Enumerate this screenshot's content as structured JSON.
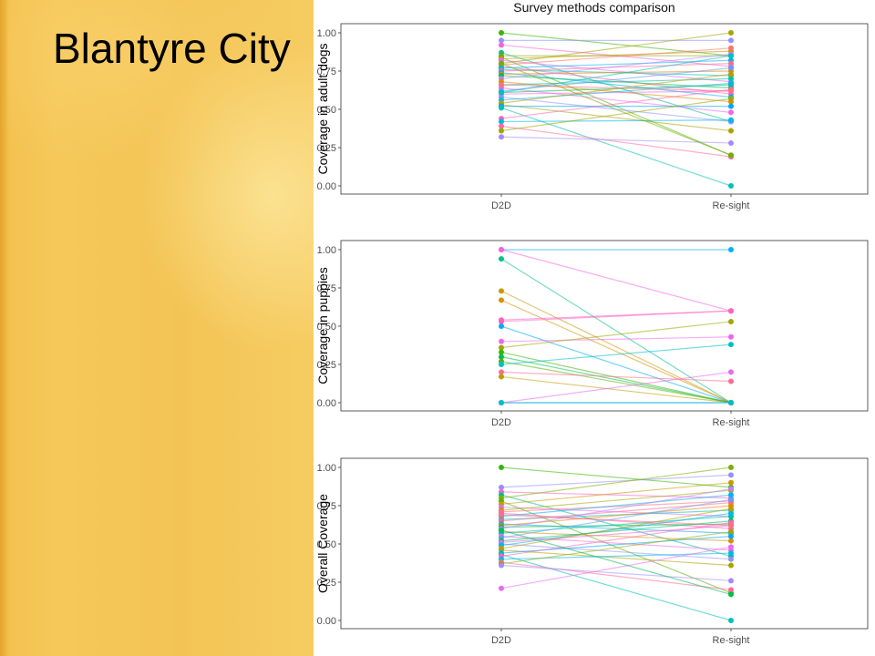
{
  "slide": {
    "title": "Blantyre City"
  },
  "chart_data": [
    {
      "type": "line",
      "title": "Survey methods comparison",
      "ylabel": "Coverage in adult dogs",
      "categories": [
        "D2D",
        "Re-sight"
      ],
      "ylim": [
        0,
        1
      ],
      "yticks": [
        "0.00",
        "0.25",
        "0.50",
        "0.75",
        "1.00"
      ],
      "grid": false,
      "legend": "none",
      "series": [
        {
          "values": [
            1.0,
            0.85
          ],
          "color": "#39b600"
        },
        {
          "values": [
            0.95,
            0.95
          ],
          "color": "#9590ff"
        },
        {
          "values": [
            0.92,
            0.78
          ],
          "color": "#fd61d1"
        },
        {
          "values": [
            0.87,
            0.42
          ],
          "color": "#00c08b"
        },
        {
          "values": [
            0.85,
            0.85
          ],
          "color": "#7cae00"
        },
        {
          "values": [
            0.84,
            0.2
          ],
          "color": "#53b400"
        },
        {
          "values": [
            0.83,
            0.88
          ],
          "color": "#c99800"
        },
        {
          "values": [
            0.82,
            0.68
          ],
          "color": "#e76bf3"
        },
        {
          "values": [
            0.8,
            1.0
          ],
          "color": "#a3a500"
        },
        {
          "values": [
            0.79,
            0.9
          ],
          "color": "#f8766d"
        },
        {
          "values": [
            0.78,
            0.6
          ],
          "color": "#ff62bc"
        },
        {
          "values": [
            0.77,
            0.82
          ],
          "color": "#00b0f6"
        },
        {
          "values": [
            0.76,
            0.72
          ],
          "color": "#00bfc4"
        },
        {
          "values": [
            0.75,
            0.8
          ],
          "color": "#ff6c91"
        },
        {
          "values": [
            0.74,
            0.58
          ],
          "color": "#00a9ff"
        },
        {
          "values": [
            0.73,
            0.75
          ],
          "color": "#e58700"
        },
        {
          "values": [
            0.72,
            0.64
          ],
          "color": "#00bc56"
        },
        {
          "values": [
            0.7,
            0.86
          ],
          "color": "#b983ff"
        },
        {
          "values": [
            0.68,
            0.55
          ],
          "color": "#d89000"
        },
        {
          "values": [
            0.66,
            0.7
          ],
          "color": "#00c1a3"
        },
        {
          "values": [
            0.64,
            0.48
          ],
          "color": "#ef67eb"
        },
        {
          "values": [
            0.62,
            0.77
          ],
          "color": "#619cff"
        },
        {
          "values": [
            0.61,
            0.66
          ],
          "color": "#00bd5c"
        },
        {
          "values": [
            0.6,
            0.62
          ],
          "color": "#f564e3"
        },
        {
          "values": [
            0.58,
            0.42
          ],
          "color": "#8f91ff"
        },
        {
          "values": [
            0.56,
            0.67
          ],
          "color": "#00b8e7"
        },
        {
          "values": [
            0.54,
            0.73
          ],
          "color": "#bb9d00"
        },
        {
          "values": [
            0.53,
            0.36
          ],
          "color": "#aba300"
        },
        {
          "values": [
            0.52,
            0.52
          ],
          "color": "#00a5ff"
        },
        {
          "values": [
            0.51,
            0.0
          ],
          "color": "#00c0b8"
        },
        {
          "values": [
            0.44,
            0.63
          ],
          "color": "#ff65af"
        },
        {
          "values": [
            0.42,
            0.43
          ],
          "color": "#00b6eb"
        },
        {
          "values": [
            0.39,
            0.19
          ],
          "color": "#ff6a98"
        },
        {
          "values": [
            0.36,
            0.57
          ],
          "color": "#99a800"
        },
        {
          "values": [
            0.32,
            0.28
          ],
          "color": "#a58aff"
        },
        {
          "values": [
            0.61,
            0.85
          ],
          "color": "#00bfc4"
        },
        {
          "values": [
            0.8,
            0.2
          ],
          "color": "#72b000"
        },
        {
          "values": [
            0.66,
            0.62
          ],
          "color": "#fc717f"
        }
      ]
    },
    {
      "type": "line",
      "ylabel": "Coverage in puppies",
      "categories": [
        "D2D",
        "Re-sight"
      ],
      "ylim": [
        0,
        1
      ],
      "yticks": [
        "0.00",
        "0.25",
        "0.50",
        "0.75",
        "1.00"
      ],
      "grid": false,
      "legend": "none",
      "series": [
        {
          "values": [
            1.0,
            1.0
          ],
          "color": "#00b0f6"
        },
        {
          "values": [
            1.0,
            0.6
          ],
          "color": "#f564e3"
        },
        {
          "values": [
            0.94,
            0.0
          ],
          "color": "#00c08b"
        },
        {
          "values": [
            0.73,
            0.0
          ],
          "color": "#c99800"
        },
        {
          "values": [
            0.67,
            0.0
          ],
          "color": "#d89000"
        },
        {
          "values": [
            0.54,
            0.6
          ],
          "color": "#fd61d1"
        },
        {
          "values": [
            0.53,
            0.6
          ],
          "color": "#ff62bc"
        },
        {
          "values": [
            0.5,
            0.0
          ],
          "color": "#00a9ff"
        },
        {
          "values": [
            0.4,
            0.43
          ],
          "color": "#ef67eb"
        },
        {
          "values": [
            0.36,
            0.53
          ],
          "color": "#a3a500"
        },
        {
          "values": [
            0.33,
            0.0
          ],
          "color": "#39b600"
        },
        {
          "values": [
            0.3,
            0.0
          ],
          "color": "#00bc56"
        },
        {
          "values": [
            0.27,
            0.0
          ],
          "color": "#53b400"
        },
        {
          "values": [
            0.25,
            0.38
          ],
          "color": "#00bfc4"
        },
        {
          "values": [
            0.2,
            0.14
          ],
          "color": "#ff6c91"
        },
        {
          "values": [
            0.17,
            0.0
          ],
          "color": "#bb9d00"
        },
        {
          "values": [
            0.0,
            0.2
          ],
          "color": "#e76bf3"
        },
        {
          "values": [
            0.0,
            0.0
          ],
          "color": "#619cff"
        },
        {
          "values": [
            0.0,
            0.0
          ],
          "color": "#00bfc4"
        }
      ]
    },
    {
      "type": "line",
      "ylabel": "Overall Coverage",
      "categories": [
        "D2D",
        "Re-sight"
      ],
      "ylim": [
        0,
        1
      ],
      "yticks": [
        "0.00",
        "0.25",
        "0.50",
        "0.75",
        "1.00"
      ],
      "grid": false,
      "legend": "none",
      "series": [
        {
          "values": [
            1.0,
            0.87
          ],
          "color": "#39b600"
        },
        {
          "values": [
            0.87,
            0.95
          ],
          "color": "#9590ff"
        },
        {
          "values": [
            0.84,
            0.8
          ],
          "color": "#fd61d1"
        },
        {
          "values": [
            0.82,
            0.42
          ],
          "color": "#00c08b"
        },
        {
          "values": [
            0.8,
            1.0
          ],
          "color": "#7cae00"
        },
        {
          "values": [
            0.78,
            0.18
          ],
          "color": "#53b400"
        },
        {
          "values": [
            0.76,
            0.9
          ],
          "color": "#c99800"
        },
        {
          "values": [
            0.74,
            0.68
          ],
          "color": "#e76bf3"
        },
        {
          "values": [
            0.72,
            0.85
          ],
          "color": "#a3a500"
        },
        {
          "values": [
            0.71,
            0.78
          ],
          "color": "#f8766d"
        },
        {
          "values": [
            0.7,
            0.6
          ],
          "color": "#ff62bc"
        },
        {
          "values": [
            0.68,
            0.82
          ],
          "color": "#00b0f6"
        },
        {
          "values": [
            0.66,
            0.72
          ],
          "color": "#00bfc4"
        },
        {
          "values": [
            0.65,
            0.77
          ],
          "color": "#ff6c91"
        },
        {
          "values": [
            0.63,
            0.57
          ],
          "color": "#00a9ff"
        },
        {
          "values": [
            0.62,
            0.75
          ],
          "color": "#e58700"
        },
        {
          "values": [
            0.61,
            0.63
          ],
          "color": "#00bc56"
        },
        {
          "values": [
            0.6,
            0.86
          ],
          "color": "#b983ff"
        },
        {
          "values": [
            0.58,
            0.52
          ],
          "color": "#d89000"
        },
        {
          "values": [
            0.57,
            0.68
          ],
          "color": "#00c1a3"
        },
        {
          "values": [
            0.55,
            0.46
          ],
          "color": "#ef67eb"
        },
        {
          "values": [
            0.54,
            0.79
          ],
          "color": "#619cff"
        },
        {
          "values": [
            0.52,
            0.65
          ],
          "color": "#00bd5c"
        },
        {
          "values": [
            0.51,
            0.62
          ],
          "color": "#f564e3"
        },
        {
          "values": [
            0.5,
            0.4
          ],
          "color": "#8f91ff"
        },
        {
          "values": [
            0.49,
            0.7
          ],
          "color": "#00b8e7"
        },
        {
          "values": [
            0.47,
            0.73
          ],
          "color": "#bb9d00"
        },
        {
          "values": [
            0.46,
            0.36
          ],
          "color": "#aba300"
        },
        {
          "values": [
            0.44,
            0.55
          ],
          "color": "#00a5ff"
        },
        {
          "values": [
            0.43,
            0.0
          ],
          "color": "#00c0b8"
        },
        {
          "values": [
            0.42,
            0.64
          ],
          "color": "#ff65af"
        },
        {
          "values": [
            0.4,
            0.44
          ],
          "color": "#00b6eb"
        },
        {
          "values": [
            0.38,
            0.2
          ],
          "color": "#ff6a98"
        },
        {
          "values": [
            0.37,
            0.58
          ],
          "color": "#99a800"
        },
        {
          "values": [
            0.36,
            0.26
          ],
          "color": "#a58aff"
        },
        {
          "values": [
            0.21,
            0.48
          ],
          "color": "#e76bf3"
        },
        {
          "values": [
            0.59,
            0.17
          ],
          "color": "#00bc56"
        },
        {
          "values": [
            0.69,
            0.62
          ],
          "color": "#fc717f"
        }
      ]
    }
  ]
}
